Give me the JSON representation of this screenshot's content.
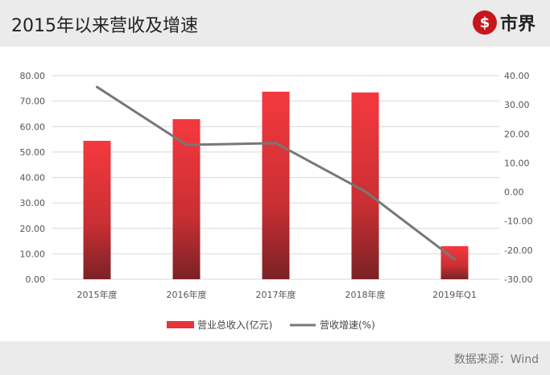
{
  "header": {
    "title": "2015年以来营收及增速",
    "logo_text": "市界",
    "logo_mark": "$"
  },
  "footer": {
    "source": "数据来源：Wind"
  },
  "chart_data": {
    "type": "bar+line",
    "categories": [
      "2015年度",
      "2016年度",
      "2017年度",
      "2018年度",
      "2019年Q1"
    ],
    "series": [
      {
        "name": "营业总收入(亿元)",
        "type": "bar",
        "axis": "left",
        "values": [
          54.4,
          62.9,
          73.7,
          73.4,
          13.0
        ],
        "color": "#e8333a"
      },
      {
        "name": "营收增速(%)",
        "type": "line",
        "axis": "right",
        "values": [
          36.1,
          16.2,
          16.8,
          0.2,
          -23.1
        ],
        "color": "#777777"
      }
    ],
    "left_axis": {
      "ylim": [
        0,
        80
      ],
      "ticks": [
        "0.00",
        "10.00",
        "20.00",
        "30.00",
        "40.00",
        "50.00",
        "60.00",
        "70.00",
        "80.00"
      ]
    },
    "right_axis": {
      "ylim": [
        -30,
        40
      ],
      "ticks": [
        "-30.00",
        "-20.00",
        "-10.00",
        "0.00",
        "10.00",
        "20.00",
        "30.00",
        "40.00"
      ]
    },
    "grid": true,
    "legend": "bottom"
  }
}
